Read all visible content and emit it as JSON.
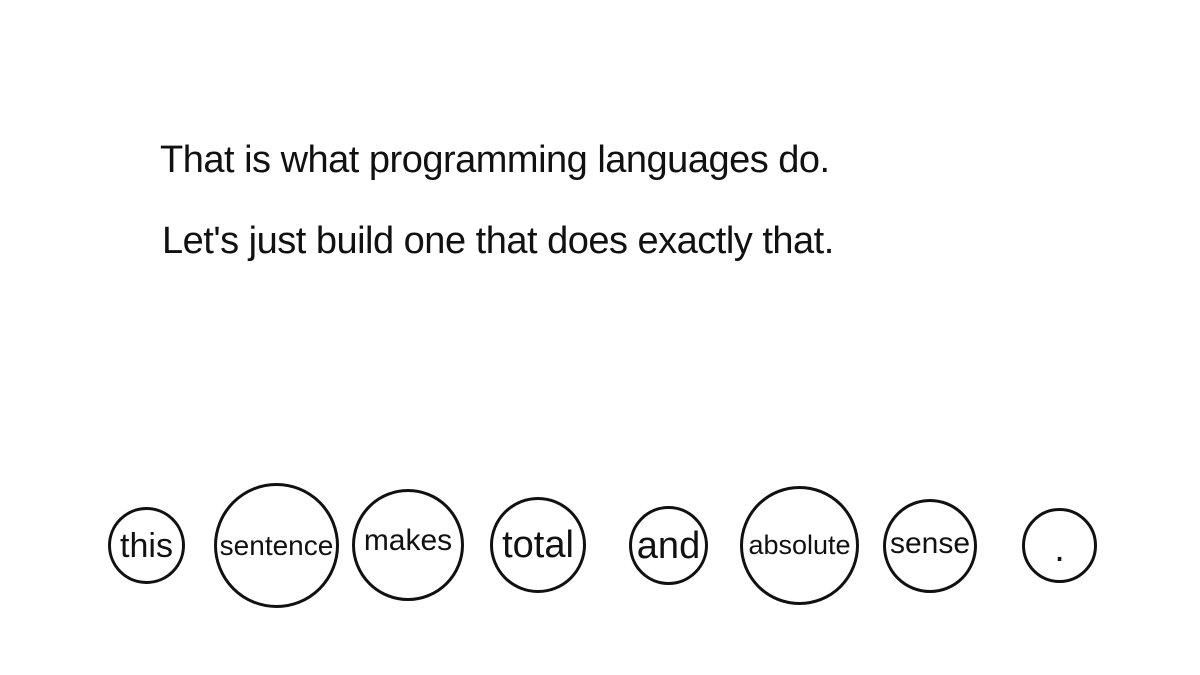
{
  "slide": {
    "lines": [
      "That is what programming languages do.",
      "Let's just build one that does exactly that."
    ],
    "words": [
      "this",
      "sentence",
      "makes",
      "total",
      "and",
      "absolute",
      "sense",
      "."
    ]
  },
  "colors": {
    "text": "#111111",
    "background": "#ffffff"
  }
}
